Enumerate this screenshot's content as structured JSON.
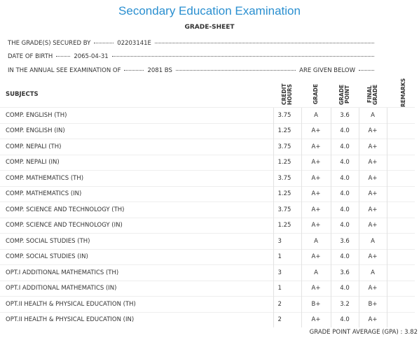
{
  "header": {
    "title": "Secondary Education Examination",
    "subtitle": "GRADE-SHEET"
  },
  "info": {
    "symbol_label": "THE GRADE(S) SECURED BY",
    "symbol_value": "02203141E",
    "dob_label": "DATE OF BIRTH",
    "dob_value": "2065-04-31",
    "exam_label": "IN THE ANNUAL SEE EXAMINATION OF",
    "exam_value": "2081 BS",
    "exam_suffix": "ARE GIVEN BELOW"
  },
  "table": {
    "columns": [
      "SUBJECTS",
      "CREDIT HOURS",
      "GRADE",
      "GRADE POINT",
      "FINAL GRADE",
      "REMARKS"
    ],
    "rows": [
      [
        "COMP. ENGLISH (TH)",
        "3.75",
        "A",
        "3.6",
        "A"
      ],
      [
        "COMP. ENGLISH (IN)",
        "1.25",
        "A+",
        "4.0",
        "A+"
      ],
      [
        "COMP. NEPALI (TH)",
        "3.75",
        "A+",
        "4.0",
        "A+"
      ],
      [
        "COMP. NEPALI (IN)",
        "1.25",
        "A+",
        "4.0",
        "A+"
      ],
      [
        "COMP. MATHEMATICS (TH)",
        "3.75",
        "A+",
        "4.0",
        "A+"
      ],
      [
        "COMP. MATHEMATICS (IN)",
        "1.25",
        "A+",
        "4.0",
        "A+"
      ],
      [
        "COMP. SCIENCE AND TECHNOLOGY (TH)",
        "3.75",
        "A+",
        "4.0",
        "A+"
      ],
      [
        "COMP. SCIENCE AND TECHNOLOGY (IN)",
        "1.25",
        "A+",
        "4.0",
        "A+"
      ],
      [
        "COMP. SOCIAL STUDIES (TH)",
        "3",
        "A",
        "3.6",
        "A"
      ],
      [
        "COMP. SOCIAL STUDIES (IN)",
        "1",
        "A+",
        "4.0",
        "A+"
      ],
      [
        "OPT.I ADDITIONAL MATHEMATICS (TH)",
        "3",
        "A",
        "3.6",
        "A"
      ],
      [
        "OPT.I ADDITIONAL MATHEMATICS (IN)",
        "1",
        "A+",
        "4.0",
        "A+"
      ],
      [
        "OPT.II HEALTH & PHYSICAL EDUCATION (TH)",
        "2",
        "B+",
        "3.2",
        "B+"
      ],
      [
        "OPT.II HEALTH & PHYSICAL EDUCATION (IN)",
        "2",
        "A+",
        "4.0",
        "A+"
      ]
    ]
  },
  "footer": {
    "gpa_label": "GRADE POINT AVERAGE (GPA) :",
    "gpa_value": "3.82"
  }
}
